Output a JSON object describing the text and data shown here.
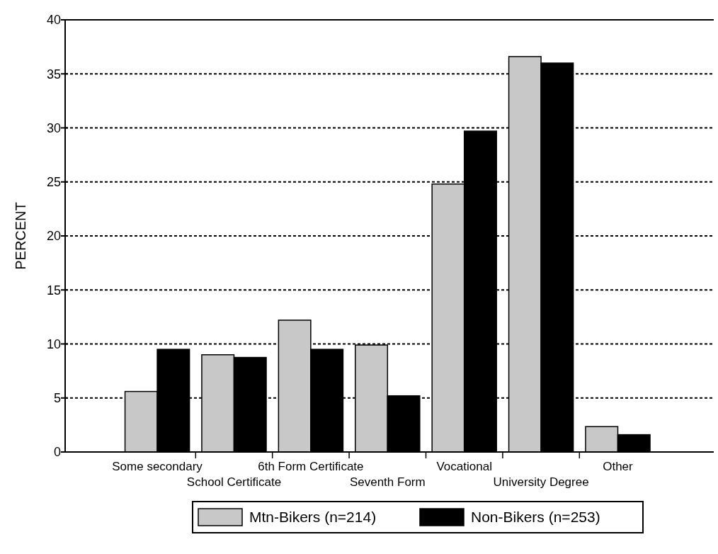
{
  "chart_data": {
    "type": "bar",
    "ylabel": "PERCENT",
    "categories": [
      "Some secondary",
      "School Certificate",
      "6th Form Certificate",
      "Seventh Form",
      "Vocational",
      "University Degree",
      "Other"
    ],
    "series": [
      {
        "name": "Mtn-Bikers (n=214)",
        "color": "#c8c8c8",
        "values": [
          5.6,
          9.0,
          12.2,
          9.9,
          24.8,
          36.6,
          2.35
        ]
      },
      {
        "name": "Non-Bikers (n=253)",
        "color": "#000000",
        "values": [
          9.5,
          8.75,
          9.5,
          5.2,
          29.7,
          36.0,
          1.6
        ]
      }
    ],
    "ylim": [
      0,
      40
    ],
    "yticks": [
      0,
      5,
      10,
      15,
      20,
      25,
      30,
      35,
      40
    ],
    "grid": "y",
    "legend": "bottom"
  }
}
